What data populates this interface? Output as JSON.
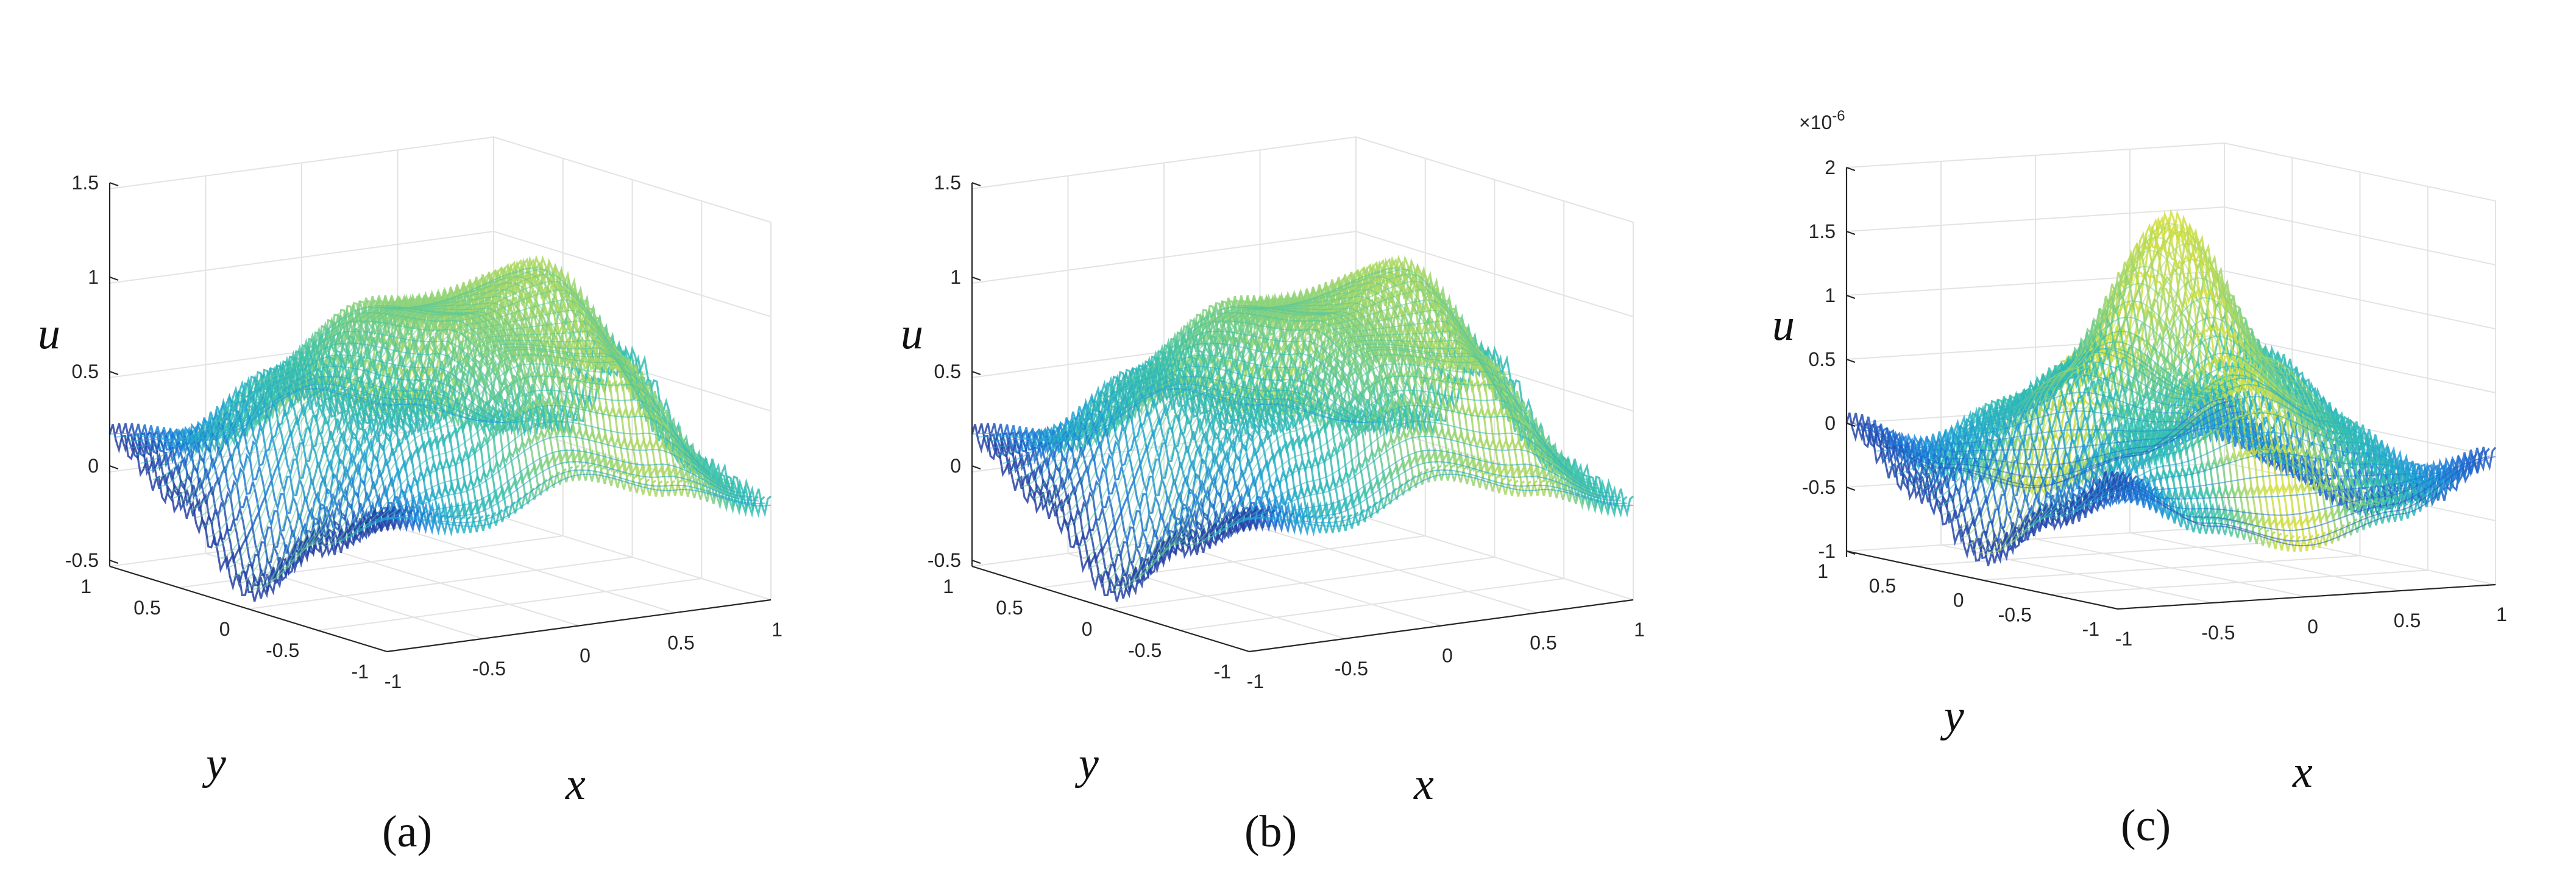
{
  "figure": {
    "panel_labels": [
      "(a)",
      "(b)",
      "(c)"
    ]
  },
  "chart_data": [
    {
      "type": "surface",
      "panel": "(a)",
      "xlabel": "x",
      "ylabel": "y",
      "zlabel": "u",
      "xlim": [
        -1,
        1
      ],
      "ylim": [
        -1,
        1
      ],
      "zlim": [
        -0.5,
        1.5
      ],
      "x_ticks": [
        "-1",
        "-0.5",
        "0",
        "0.5",
        "1"
      ],
      "y_ticks": [
        "-1",
        "-0.5",
        "0",
        "0.5",
        "1"
      ],
      "z_ticks": [
        "-0.5",
        "0",
        "0.5",
        "1",
        "1.5"
      ],
      "exponent_label": "",
      "grid": true,
      "colormap": [
        "#2a2f8f",
        "#1f6fd6",
        "#1fa0d6",
        "#35c0b0",
        "#8fd37a",
        "#d8e03c"
      ],
      "grid_x": [
        -1,
        -0.5,
        0,
        0.5,
        1
      ],
      "grid_y": [
        -1,
        -0.5,
        0,
        0.5,
        1
      ],
      "z_values": [
        [
          0.2,
          -0.05,
          -0.4,
          -0.05,
          0.2
        ],
        [
          0.1,
          0.55,
          0.5,
          0.55,
          0.1
        ],
        [
          0.3,
          0.85,
          0.95,
          0.85,
          0.3
        ],
        [
          0.15,
          0.75,
          1.1,
          0.75,
          0.15
        ],
        [
          0.0,
          0.1,
          0.55,
          0.1,
          0.0
        ]
      ]
    },
    {
      "type": "surface",
      "panel": "(b)",
      "xlabel": "x",
      "ylabel": "y",
      "zlabel": "u",
      "xlim": [
        -1,
        1
      ],
      "ylim": [
        -1,
        1
      ],
      "zlim": [
        -0.5,
        1.5
      ],
      "x_ticks": [
        "-1",
        "-0.5",
        "0",
        "0.5",
        "1"
      ],
      "y_ticks": [
        "-1",
        "-0.5",
        "0",
        "0.5",
        "1"
      ],
      "z_ticks": [
        "-0.5",
        "0",
        "0.5",
        "1",
        "1.5"
      ],
      "exponent_label": "",
      "grid": true,
      "colormap": [
        "#2a2f8f",
        "#1f6fd6",
        "#1fa0d6",
        "#35c0b0",
        "#8fd37a",
        "#d8e03c"
      ],
      "grid_x": [
        -1,
        -0.5,
        0,
        0.5,
        1
      ],
      "grid_y": [
        -1,
        -0.5,
        0,
        0.5,
        1
      ],
      "z_values": [
        [
          0.2,
          -0.05,
          -0.4,
          -0.05,
          0.2
        ],
        [
          0.1,
          0.55,
          0.5,
          0.55,
          0.1
        ],
        [
          0.3,
          0.85,
          0.95,
          0.85,
          0.3
        ],
        [
          0.15,
          0.75,
          1.1,
          0.75,
          0.15
        ],
        [
          0.0,
          0.1,
          0.55,
          0.1,
          0.0
        ]
      ]
    },
    {
      "type": "surface",
      "panel": "(c)",
      "xlabel": "x",
      "ylabel": "y",
      "zlabel": "u",
      "xlim": [
        -1,
        1
      ],
      "ylim": [
        -1,
        1
      ],
      "zlim": [
        -1,
        2
      ],
      "x_ticks": [
        "-1",
        "-0.5",
        "0",
        "0.5",
        "1"
      ],
      "y_ticks": [
        "-1",
        "-0.5",
        "0",
        "0.5",
        "1"
      ],
      "z_ticks": [
        "-1",
        "-0.5",
        "0",
        "0.5",
        "1",
        "1.5",
        "2"
      ],
      "exponent_label": "×10",
      "exponent_power": "-6",
      "grid": true,
      "colormap": [
        "#2a2f8f",
        "#1f6fd6",
        "#1fa0d6",
        "#35c0b0",
        "#8fd37a",
        "#d8e03c"
      ],
      "grid_x": [
        -1,
        -0.5,
        0,
        0.5,
        1
      ],
      "grid_y": [
        -1,
        -0.5,
        0,
        0.5,
        1
      ],
      "z_values": [
        [
          0.0,
          -0.4,
          -0.8,
          -0.4,
          0.0
        ],
        [
          -0.4,
          0.2,
          0.6,
          0.2,
          -0.4
        ],
        [
          -0.6,
          0.6,
          1.7,
          0.6,
          -0.6
        ],
        [
          -0.4,
          0.2,
          0.6,
          0.2,
          -0.4
        ],
        [
          0.0,
          -0.4,
          -0.6,
          -0.4,
          0.0
        ]
      ]
    }
  ]
}
